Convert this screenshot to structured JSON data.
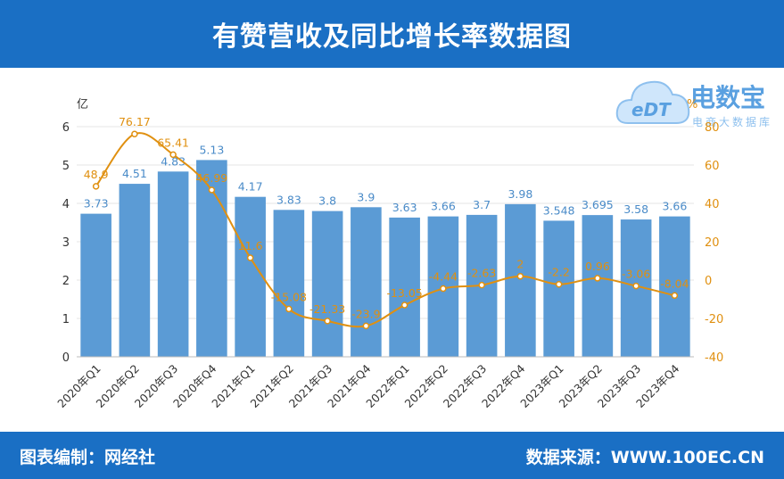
{
  "header": {
    "title": "有赞营收及同比增长率数据图"
  },
  "footer": {
    "left": "图表编制：网经社",
    "right": "数据来源：WWW.100EC.CN"
  },
  "logo": {
    "brand": "电数宝",
    "mark": "eDT",
    "sub": "电商大数据库"
  },
  "colors": {
    "bar": "#5b9bd5",
    "line": "#e09010",
    "header_bg": "#1a6fc4"
  },
  "chart_data": {
    "type": "bar",
    "categories": [
      "2020年Q1",
      "2020年Q2",
      "2020年Q3",
      "2020年Q4",
      "2021年Q1",
      "2021年Q2",
      "2021年Q3",
      "2021年Q4",
      "2022年Q1",
      "2022年Q2",
      "2022年Q3",
      "2022年Q4",
      "2023年Q1",
      "2023年Q2",
      "2023年Q3",
      "2023年Q4"
    ],
    "series": [
      {
        "type": "bar",
        "axis": "left",
        "values": [
          3.73,
          4.51,
          4.83,
          5.13,
          4.17,
          3.83,
          3.8,
          3.9,
          3.63,
          3.66,
          3.7,
          3.98,
          3.548,
          3.695,
          3.58,
          3.66
        ],
        "labels": [
          "3.73",
          "4.51",
          "4.83",
          "5.13",
          "4.17",
          "3.83",
          "3.8",
          "3.9",
          "3.63",
          "3.66",
          "3.7",
          "3.98",
          "3.548",
          "3.695",
          "3.58",
          "3.66"
        ]
      },
      {
        "type": "line",
        "axis": "right",
        "values": [
          48.9,
          76.17,
          65.41,
          46.99,
          11.6,
          -15.08,
          -21.33,
          -23.9,
          -13.05,
          -4.44,
          -2.63,
          2,
          -2.2,
          0.96,
          -3.06,
          -8.04
        ],
        "labels": [
          "48.9",
          "76.17",
          "65.41",
          "46.99",
          "11.6",
          "-15.08",
          "-21.33",
          "-23.9",
          "-13.05",
          "-4.44",
          "-2.63",
          "2",
          "-2.2",
          "0.96",
          "-3.06",
          "-8.04"
        ]
      }
    ],
    "y_left": {
      "unit": "亿",
      "min": 0,
      "max": 6,
      "ticks": [
        "0",
        "1",
        "2",
        "3",
        "4",
        "5",
        "6"
      ]
    },
    "y_right": {
      "unit": "%",
      "min": -40,
      "max": 80,
      "ticks": [
        "-40",
        "-20",
        "0",
        "20",
        "40",
        "60",
        "80"
      ]
    },
    "grid": true
  }
}
